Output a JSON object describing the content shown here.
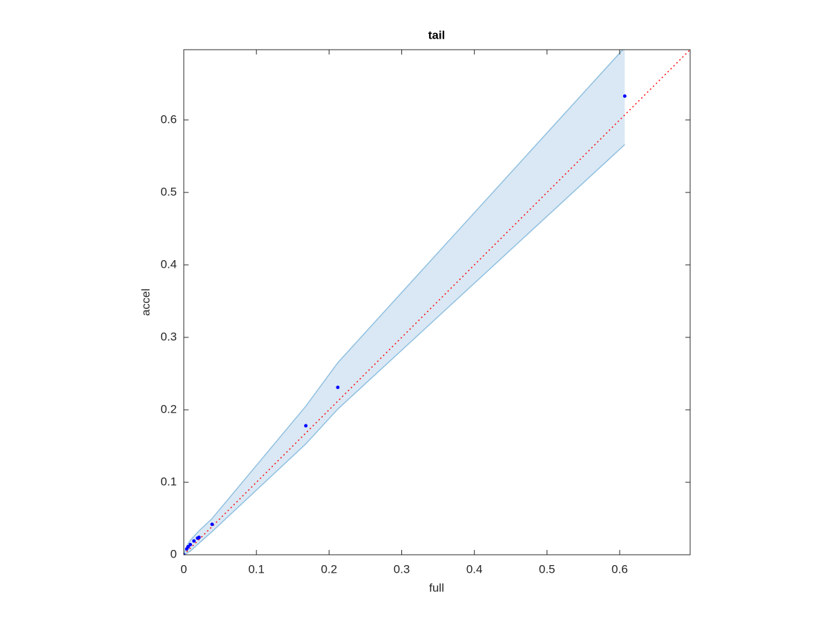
{
  "chart_data": {
    "type": "scatter",
    "title": "tail",
    "xlabel": "full",
    "ylabel": "accel",
    "xlim": [
      0,
      0.697
    ],
    "ylim": [
      0,
      0.697
    ],
    "xticks": [
      0,
      0.1,
      0.2,
      0.3,
      0.4,
      0.5,
      0.6
    ],
    "yticks": [
      0,
      0.1,
      0.2,
      0.3,
      0.4,
      0.5,
      0.6
    ],
    "series": [
      {
        "color": "#0000ff",
        "x": [
          0,
          0.004,
          0.006,
          0.009,
          0.014,
          0.019,
          0.021,
          0.039,
          0.168,
          0.212,
          0.607
        ],
        "values": [
          0,
          0.008,
          0.011,
          0.014,
          0.019,
          0.023,
          0.024,
          0.042,
          0.178,
          0.231,
          0.633
        ]
      }
    ],
    "band": {
      "color": "#d9e8f4",
      "edge_color": "#8fbfe0",
      "x": [
        0,
        0.004,
        0.009,
        0.021,
        0.039,
        0.168,
        0.212,
        0.607
      ],
      "lower": [
        0,
        0.002,
        0.005,
        0.016,
        0.032,
        0.153,
        0.201,
        0.566
      ],
      "upper": [
        0,
        0.012,
        0.02,
        0.033,
        0.05,
        0.205,
        0.265,
        0.7
      ]
    },
    "reference_line_color": "#ff0000"
  }
}
